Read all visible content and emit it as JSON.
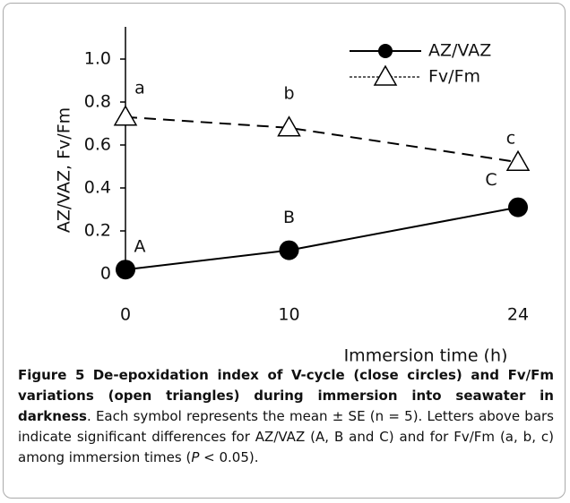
{
  "chart_data": {
    "type": "line",
    "x_label": "Immersion time (h)",
    "y_label": "AZ/VAZ, Fv/Fm",
    "x": [
      0,
      10,
      24
    ],
    "xlim": [
      0,
      24
    ],
    "xticks": [
      0,
      10,
      24
    ],
    "ylim": [
      0,
      1.15
    ],
    "yticks": [
      0,
      0.2,
      0.4,
      0.6,
      {
        "value": 0.8,
        "label": "0.8"
      },
      {
        "value": 1,
        "label": "1.0"
      }
    ],
    "legend": "upper right",
    "series": [
      {
        "name": "AZ/VAZ",
        "color": "#000000",
        "marker": "circle",
        "linestyle": "solid",
        "values": [
          0.02,
          0.11,
          0.31
        ],
        "errors": [
          0,
          0,
          0.03
        ],
        "point_labels": [
          "A",
          "B",
          "C"
        ]
      },
      {
        "name": "Fv/Fm",
        "color": "#000000",
        "marker": "open-triangle",
        "linestyle": "dashed",
        "values": [
          0.73,
          0.68,
          0.52
        ],
        "point_labels": [
          "a",
          "b",
          "c"
        ]
      }
    ]
  },
  "caption": {
    "label": "Figure 5",
    "title": "De-epoxidation index of V-cycle (close circles) and Fv/Fm variations (open triangles) during immersion into seawater in darkness",
    "text": [
      ". Each symbol represents the mean ± SE (n = 5). Letters above bars indicate significant differences for AZ/VAZ (A, B and C) and for Fv/Fm (a, b, c) among immersion times (",
      "P",
      " < 0.05)."
    ]
  }
}
